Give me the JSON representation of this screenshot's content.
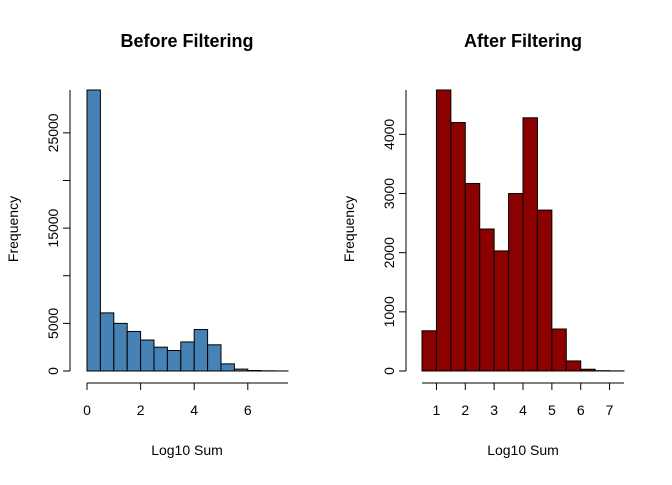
{
  "chart_data": [
    {
      "type": "bar",
      "subtype": "histogram",
      "title": "Before Filtering",
      "xlabel": "Log10 Sum",
      "ylabel": "Frequency",
      "fill_color": "#4682B4",
      "edge_color": "#000000",
      "bin_width": 0.5,
      "bin_start": 0,
      "values": [
        29500,
        6100,
        5000,
        4150,
        3250,
        2500,
        2150,
        3050,
        4350,
        2750,
        750,
        200,
        50,
        20,
        5
      ],
      "xlim": [
        0,
        7.5
      ],
      "ylim": [
        0,
        29500
      ],
      "x_ticks": [
        0,
        2,
        4,
        6
      ],
      "x_tick_labels": [
        "0",
        "2",
        "4",
        "6"
      ],
      "x_axis_span": [
        0,
        7.5
      ],
      "y_ticks": [
        0,
        5000,
        15000,
        25000
      ],
      "y_tick_labels": [
        "0",
        "5000",
        "15000",
        "25000"
      ],
      "y_axis_span": [
        0,
        29500
      ],
      "y_minor_ticks": [
        10000,
        20000
      ]
    },
    {
      "type": "bar",
      "subtype": "histogram",
      "title": "After Filtering",
      "xlabel": "Log10 Sum",
      "ylabel": "Frequency",
      "fill_color": "#8B0000",
      "edge_color": "#000000",
      "bin_width": 0.5,
      "bin_start": 0.5,
      "values": [
        680,
        4750,
        4200,
        3170,
        2400,
        2030,
        3000,
        4280,
        2720,
        710,
        170,
        30,
        5,
        2
      ],
      "xlim": [
        0.5,
        7.5
      ],
      "ylim": [
        0,
        4750
      ],
      "x_ticks": [
        1,
        2,
        3,
        4,
        5,
        6,
        7
      ],
      "x_tick_labels": [
        "1",
        "2",
        "3",
        "4",
        "5",
        "6",
        "7"
      ],
      "x_axis_span": [
        0.5,
        7.5
      ],
      "y_ticks": [
        0,
        1000,
        2000,
        3000,
        4000
      ],
      "y_tick_labels": [
        "0",
        "1000",
        "2000",
        "3000",
        "4000"
      ],
      "y_axis_span": [
        0,
        4750
      ],
      "y_minor_ticks": []
    }
  ]
}
